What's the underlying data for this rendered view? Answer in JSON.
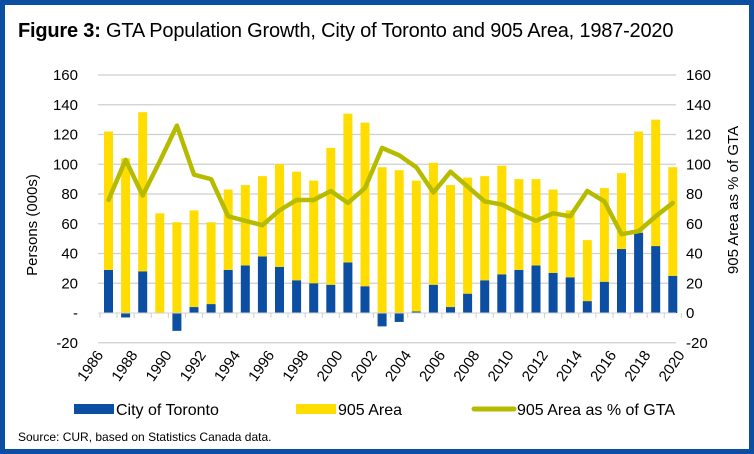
{
  "title": {
    "prefix": "Figure 3:",
    "text": " GTA Population Growth, City of Toronto and 905 Area, 1987-2020"
  },
  "source": "Source: CUR, based on Statistics Canada data.",
  "colors": {
    "toronto": "#0b4ea2",
    "area905": "#ffdd00",
    "pct_line": "#b7bb00",
    "grid": "#cfcfcf",
    "border": "#0b4ea2"
  },
  "chart_data": {
    "type": "bar",
    "subtype": "stacked bar with line on secondary axis",
    "title": "Figure 3: GTA Population Growth, City of Toronto and 905 Area, 1987-2020",
    "xlabel": "",
    "ylabel": "Persons (000s)",
    "y2label": "905 Area as % of GTA",
    "ylim": [
      -20,
      160
    ],
    "y2lim": [
      -20,
      160
    ],
    "yticks": [
      160,
      140,
      120,
      100,
      80,
      60,
      40,
      20,
      0,
      -20
    ],
    "ytick_labels": [
      "160",
      "140",
      "120",
      "100",
      "80",
      "60",
      "40",
      "20",
      "-",
      "-20"
    ],
    "y2ticks": [
      160,
      140,
      120,
      100,
      80,
      60,
      40,
      20,
      0,
      -20
    ],
    "y2tick_labels": [
      "160",
      "140",
      "120",
      "100",
      "80",
      "60",
      "40",
      "20",
      "0",
      "-20"
    ],
    "xtick_labels": [
      "1986",
      "1988",
      "1990",
      "1992",
      "1994",
      "1996",
      "1998",
      "2000",
      "2002",
      "2004",
      "2006",
      "2008",
      "2010",
      "2012",
      "2014",
      "2016",
      "2018",
      "2020"
    ],
    "grid": true,
    "legend_position": "bottom",
    "categories": [
      1987,
      1988,
      1989,
      1990,
      1991,
      1992,
      1993,
      1994,
      1995,
      1996,
      1997,
      1998,
      1999,
      2000,
      2001,
      2002,
      2003,
      2004,
      2005,
      2006,
      2007,
      2008,
      2009,
      2010,
      2011,
      2012,
      2013,
      2014,
      2015,
      2016,
      2017,
      2018,
      2019,
      2020
    ],
    "series": [
      {
        "name": "City of Toronto",
        "type": "bar",
        "axis": "left",
        "values": [
          29,
          -3,
          28,
          0,
          -12,
          4,
          6,
          29,
          32,
          38,
          31,
          22,
          20,
          19,
          34,
          18,
          -9,
          -6,
          1,
          19,
          4,
          13,
          22,
          26,
          29,
          32,
          27,
          24,
          8,
          21,
          43,
          54,
          45,
          25
        ]
      },
      {
        "name": "905 Area",
        "type": "bar",
        "axis": "left",
        "values": [
          93,
          104,
          107,
          67,
          61,
          65,
          55,
          54,
          54,
          54,
          69,
          73,
          69,
          92,
          100,
          110,
          98,
          96,
          88,
          82,
          82,
          78,
          70,
          73,
          61,
          58,
          56,
          45,
          41,
          63,
          51,
          68,
          85,
          73
        ]
      },
      {
        "name": "905 Area as % of GTA",
        "type": "line",
        "axis": "right",
        "values": [
          76,
          103,
          79,
          102,
          126,
          93,
          90,
          65,
          62,
          59,
          69,
          76,
          76,
          82,
          74,
          84,
          111,
          106,
          98,
          81,
          95,
          85,
          75,
          73,
          67,
          62,
          67,
          65,
          82,
          75,
          53,
          55,
          65,
          74
        ]
      }
    ]
  }
}
